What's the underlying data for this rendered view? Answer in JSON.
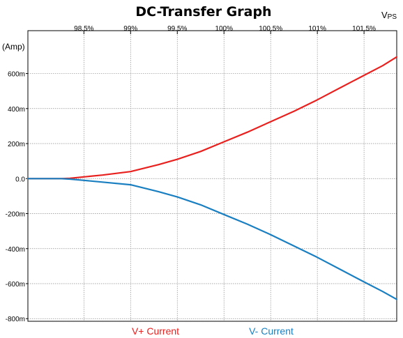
{
  "chart_data": {
    "type": "line",
    "title": "DC-Transfer Graph",
    "xlabel_main": "V",
    "xlabel_sub": "PS",
    "ylabel": "(Amp)",
    "xlim": [
      97.9,
      101.85
    ],
    "ylim": [
      -0.815,
      0.845
    ],
    "x_ticks": [
      98.5,
      99,
      99.5,
      100,
      100.5,
      101,
      101.5
    ],
    "x_tick_labels": [
      "98.5%",
      "99%",
      "99.5%",
      "100%",
      "100.5%",
      "101%",
      "101.5%"
    ],
    "y_ticks": [
      0.6,
      0.4,
      0.2,
      0,
      -0.2,
      -0.4,
      -0.6,
      -0.8
    ],
    "y_tick_labels": [
      "600m",
      "400m",
      "200m",
      "0.0",
      "-200m",
      "-400m",
      "-600m",
      "-800m"
    ],
    "grid": true,
    "legend_position": "bottom",
    "series": [
      {
        "name": "V+ Current",
        "color": "#e8211f",
        "x": [
          97.9,
          98.1,
          98.25,
          98.35,
          98.5,
          98.7,
          99.0,
          99.3,
          99.5,
          99.75,
          100.0,
          100.25,
          100.5,
          100.75,
          101.0,
          101.25,
          101.5,
          101.7,
          101.85
        ],
        "y": [
          0.0,
          0.0,
          0.0,
          0.002,
          0.01,
          0.02,
          0.04,
          0.08,
          0.11,
          0.155,
          0.21,
          0.265,
          0.325,
          0.385,
          0.45,
          0.52,
          0.59,
          0.645,
          0.695
        ]
      },
      {
        "name": "V- Current",
        "color": "#1a7fc1",
        "x": [
          97.9,
          98.1,
          98.25,
          98.35,
          98.5,
          98.7,
          99.0,
          99.3,
          99.5,
          99.75,
          100.0,
          100.25,
          100.5,
          100.75,
          101.0,
          101.25,
          101.5,
          101.7,
          101.85
        ],
        "y": [
          0.0,
          0.0,
          0.0,
          -0.003,
          -0.01,
          -0.02,
          -0.035,
          -0.075,
          -0.105,
          -0.15,
          -0.205,
          -0.26,
          -0.32,
          -0.385,
          -0.45,
          -0.52,
          -0.59,
          -0.645,
          -0.69
        ]
      }
    ]
  }
}
